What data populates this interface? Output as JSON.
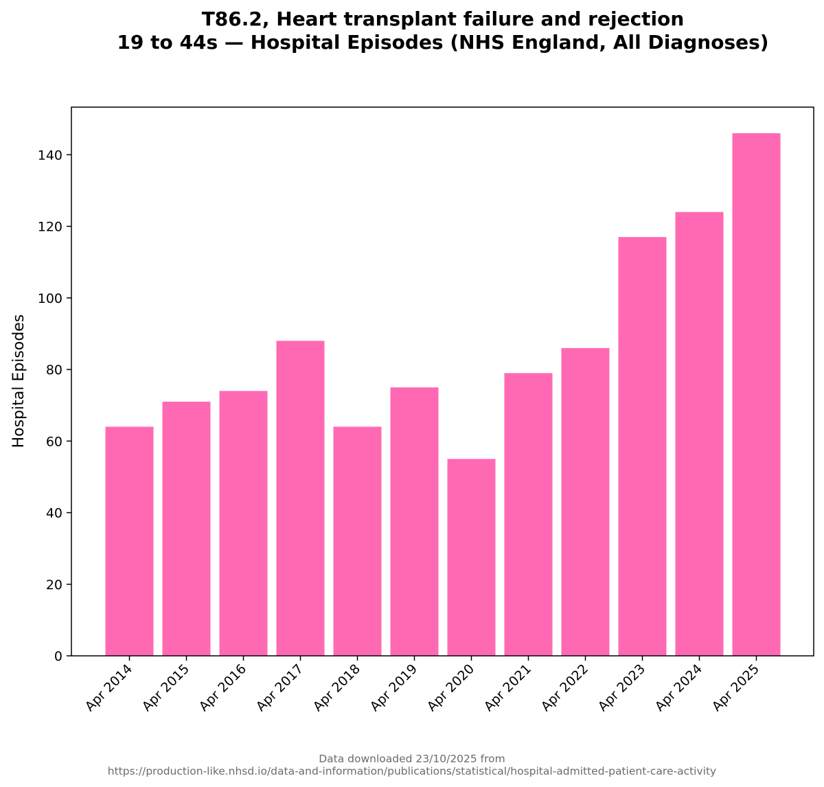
{
  "chart_data": {
    "type": "bar",
    "title_line1": "T86.2, Heart transplant failure and rejection",
    "title_line2": "19 to 44s — Hospital Episodes (NHS England, All Diagnoses)",
    "xlabel": "",
    "ylabel": "Hospital Episodes",
    "categories": [
      "Apr 2014",
      "Apr 2015",
      "Apr 2016",
      "Apr 2017",
      "Apr 2018",
      "Apr 2019",
      "Apr 2020",
      "Apr 2021",
      "Apr 2022",
      "Apr 2023",
      "Apr 2024",
      "Apr 2025"
    ],
    "values": [
      64,
      71,
      74,
      88,
      64,
      75,
      55,
      79,
      86,
      117,
      124,
      146
    ],
    "ylim": [
      0,
      153.3
    ],
    "yticks": [
      0,
      20,
      40,
      60,
      80,
      100,
      120,
      140
    ],
    "bar_color": "#ff69b4",
    "grid": false,
    "footer_line1": "Data downloaded 23/10/2025 from",
    "footer_line2": "https://production-like.nhsd.io/data-and-information/publications/statistical/hospital-admitted-patient-care-activity"
  }
}
